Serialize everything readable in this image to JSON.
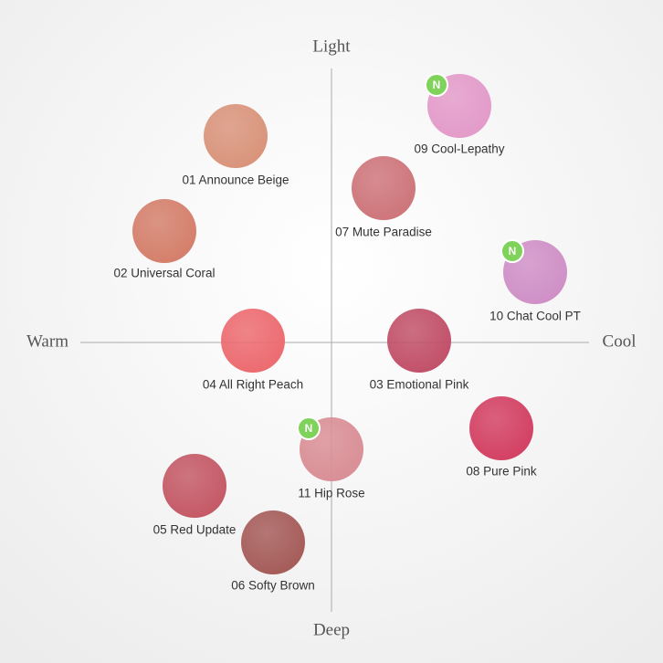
{
  "axes": {
    "top": "Light",
    "bottom": "Deep",
    "left": "Warm",
    "right": "Cool"
  },
  "nodes": [
    {
      "label": "01 Announce Beige",
      "color": "#d9937a"
    },
    {
      "label": "02 Universal Coral",
      "color": "#d47e6a"
    },
    {
      "label": "07 Mute Paradise",
      "color": "#cd7479"
    },
    {
      "label": "09 Cool-Lepathy",
      "color": "#e39ac9",
      "badge": "N"
    },
    {
      "label": "10 Chat Cool PT",
      "color": "#cf8fc6",
      "badge": "N"
    },
    {
      "label": "04 All Right Peach",
      "color": "#ec6a6f"
    },
    {
      "label": "03 Emotional Pink",
      "color": "#c14f68"
    },
    {
      "label": "08 Pure Pink",
      "color": "#d33f62"
    },
    {
      "label": "11 Hip Rose",
      "color": "#d98e95",
      "badge": "N"
    },
    {
      "label": "05 Red Update",
      "color": "#c45865"
    },
    {
      "label": "06 Softy Brown",
      "color": "#a55b58"
    }
  ]
}
